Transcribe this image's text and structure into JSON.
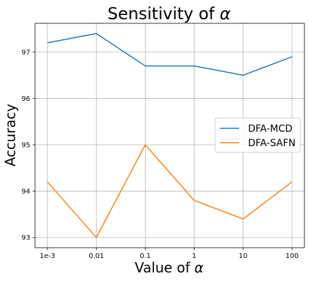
{
  "chart_data": {
    "type": "line",
    "title_text": "Sensitivity of ",
    "title_symbol": "α",
    "xlabel_text": "Value of ",
    "xlabel_symbol": "α",
    "ylabel": "Accuracy",
    "categories": [
      "1e-3",
      "0.01",
      "0.1",
      "1",
      "10",
      "100"
    ],
    "yticks": [
      93,
      94,
      95,
      96,
      97
    ],
    "ylim": [
      92.78,
      97.62
    ],
    "grid": true,
    "legend_position": "center-right",
    "series": [
      {
        "name": "DFA-MCD",
        "color": "#1f77b4",
        "values": [
          97.2,
          97.4,
          96.7,
          96.7,
          96.5,
          96.9
        ]
      },
      {
        "name": "DFA-SAFN",
        "color": "#ff7f0e",
        "values": [
          94.2,
          93.0,
          95.0,
          93.8,
          93.4,
          94.2
        ]
      }
    ]
  }
}
